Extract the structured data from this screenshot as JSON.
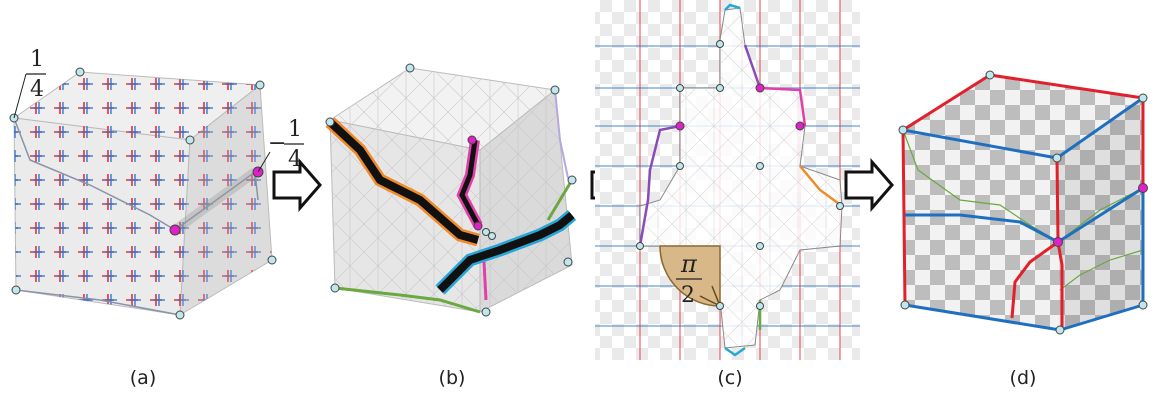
{
  "panels": [
    {
      "caption": "(a)"
    },
    {
      "caption": "(b)"
    },
    {
      "caption": "(c)"
    },
    {
      "caption": "(d)"
    }
  ],
  "annotations": {
    "quarter_pos_num": "1",
    "quarter_pos_den": "4",
    "quarter_neg_sign": "−",
    "quarter_neg_num": "1",
    "quarter_neg_den": "4",
    "angle_num": "π",
    "angle_den": "2"
  },
  "colors": {
    "cross_red": "#e0323c",
    "cross_blue": "#2a6fc8",
    "singularity_magenta": "#e020c8",
    "vertex_cyan": "#bfe8ee",
    "seam_orange": "#f08a2a",
    "seam_green": "#6aa840",
    "seam_cyan": "#27a7d8",
    "seam_purple": "#8a4ab8",
    "seam_pink": "#e040a8",
    "edge_red": "#e2202c",
    "edge_blue": "#1f6fc0",
    "angle_fill": "#d8b888"
  }
}
